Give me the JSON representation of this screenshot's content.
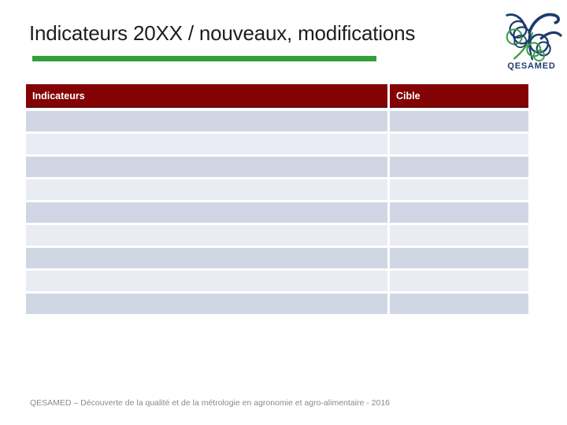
{
  "slide": {
    "title": "Indicateurs 20XX / nouveaux, modifications",
    "footer": "QESAMED – Découverte de la qualité et de la métrologie en agronomie et agro-alimentaire - 2016"
  },
  "logo": {
    "label": "QESAMED"
  },
  "table": {
    "columns": [
      {
        "label": "Indicateurs"
      },
      {
        "label": "Cible"
      }
    ],
    "rows": [
      {
        "indicateur": "",
        "cible": ""
      },
      {
        "indicateur": "",
        "cible": ""
      },
      {
        "indicateur": "",
        "cible": ""
      },
      {
        "indicateur": "",
        "cible": ""
      },
      {
        "indicateur": "",
        "cible": ""
      },
      {
        "indicateur": "",
        "cible": ""
      },
      {
        "indicateur": "",
        "cible": ""
      },
      {
        "indicateur": "",
        "cible": ""
      },
      {
        "indicateur": "",
        "cible": ""
      }
    ]
  },
  "colors": {
    "table_header_bg": "#830304",
    "table_header_text": "#ffffff",
    "row_dark": "#d0d6e4",
    "row_light": "#e9ecf3",
    "accent_green": "#339f3d",
    "title_text": "#1d1d1b",
    "footer_text": "#8a8a8a",
    "logo_blue": "#1e3c6d",
    "logo_green": "#3ba04a"
  }
}
